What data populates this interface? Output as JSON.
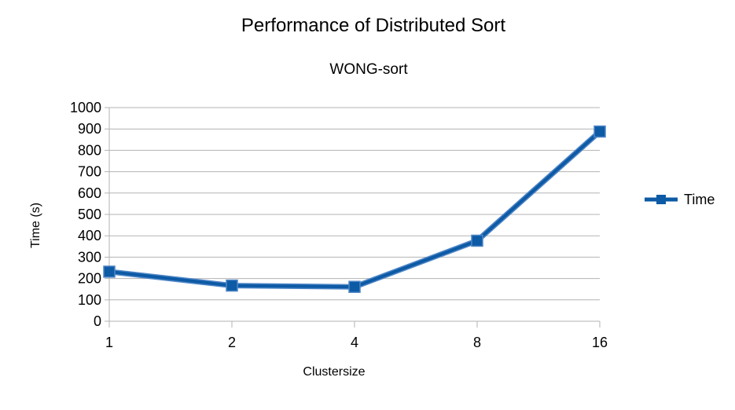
{
  "chart_data": {
    "type": "line",
    "title": "Performance of Distributed Sort",
    "subtitle": "WONG-sort",
    "xlabel": "Clustersize",
    "ylabel": "Time (s)",
    "categories": [
      "1",
      "2",
      "4",
      "8",
      "16"
    ],
    "series": [
      {
        "name": "Time",
        "values": [
          232,
          167,
          161,
          377,
          888
        ]
      }
    ],
    "ylim": [
      0,
      1000
    ],
    "yticks": [
      0,
      100,
      200,
      300,
      400,
      500,
      600,
      700,
      800,
      900,
      1000
    ],
    "grid": true,
    "legend": "right",
    "colors": {
      "series": "#0d5aa5",
      "grid": "#b3b3b3",
      "axis": "#b3b3b3"
    }
  }
}
